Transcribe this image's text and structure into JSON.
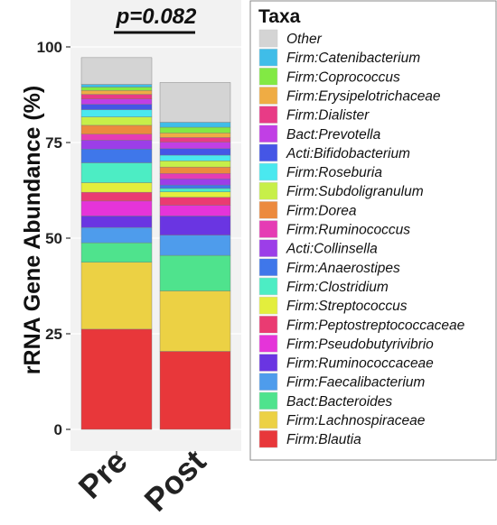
{
  "chart_data": {
    "type": "bar",
    "stacked": true,
    "categories": [
      "Pre",
      "Post"
    ],
    "ylabel": "rRNA Gene Abundance (%)",
    "ylim": [
      0,
      100
    ],
    "yticks": [
      "0",
      "25",
      "50",
      "75",
      "100"
    ],
    "annotation": "p=0.082",
    "legend_title": "Taxa",
    "legend_placement": "right",
    "panel_background": "#f2f2f2",
    "series": [
      {
        "name": "Firm:Blautia",
        "color": "#e8373a",
        "values": [
          26.2,
          20.4
        ]
      },
      {
        "name": "Firm:Lachnospiraceae",
        "color": "#ecd144",
        "values": [
          17.5,
          15.8
        ]
      },
      {
        "name": "Bact:Bacteroides",
        "color": "#4fe38d",
        "values": [
          5.1,
          9.3
        ]
      },
      {
        "name": "Firm:Faecalibacterium",
        "color": "#4e9cec",
        "values": [
          4.0,
          5.3
        ]
      },
      {
        "name": "Firm:Ruminococcaceae",
        "color": "#6a35e2",
        "values": [
          3.0,
          5.0
        ]
      },
      {
        "name": "Firm:Pseudobutyrivibrio",
        "color": "#e534d9",
        "values": [
          3.9,
          2.8
        ]
      },
      {
        "name": "Firm:Peptostreptococcaceae",
        "color": "#ea3b72",
        "values": [
          2.3,
          2.1
        ]
      },
      {
        "name": "Firm:Streptococcus",
        "color": "#e3ee3d",
        "values": [
          2.5,
          1.4
        ]
      },
      {
        "name": "Firm:Clostridium",
        "color": "#4cedc4",
        "values": [
          5.2,
          0.9
        ]
      },
      {
        "name": "Firm:Anaerostipes",
        "color": "#3f77ea",
        "values": [
          3.6,
          0.9
        ]
      },
      {
        "name": "Acti:Collinsella",
        "color": "#9c3ee8",
        "values": [
          2.3,
          1.6
        ]
      },
      {
        "name": "Firm:Ruminococcus",
        "color": "#e53cb4",
        "values": [
          1.6,
          1.4
        ]
      },
      {
        "name": "Firm:Dorea",
        "color": "#ec8a3e",
        "values": [
          2.3,
          1.7
        ]
      },
      {
        "name": "Firm:Subdoligranulum",
        "color": "#c7ef49",
        "values": [
          2.2,
          1.6
        ]
      },
      {
        "name": "Firm:Roseburia",
        "color": "#4ae8ef",
        "values": [
          1.9,
          1.5
        ]
      },
      {
        "name": "Acti:Bifidobacterium",
        "color": "#4556e6",
        "values": [
          1.4,
          1.7
        ]
      },
      {
        "name": "Bact:Prevotella",
        "color": "#c13fe5",
        "values": [
          1.4,
          1.7
        ]
      },
      {
        "name": "Firm:Dialister",
        "color": "#e83b86",
        "values": [
          1.2,
          1.2
        ]
      },
      {
        "name": "Firm:Erysipelotrichaceae",
        "color": "#efac44",
        "values": [
          1.0,
          1.2
        ]
      },
      {
        "name": "Firm:Coprococcus",
        "color": "#82e944",
        "values": [
          0.9,
          1.5
        ]
      },
      {
        "name": "Firm:Catenibacterium",
        "color": "#3fbde8",
        "values": [
          0.7,
          1.3
        ]
      },
      {
        "name": "Other",
        "color": "#d4d4d4",
        "values": [
          7.0,
          10.4
        ]
      }
    ]
  }
}
